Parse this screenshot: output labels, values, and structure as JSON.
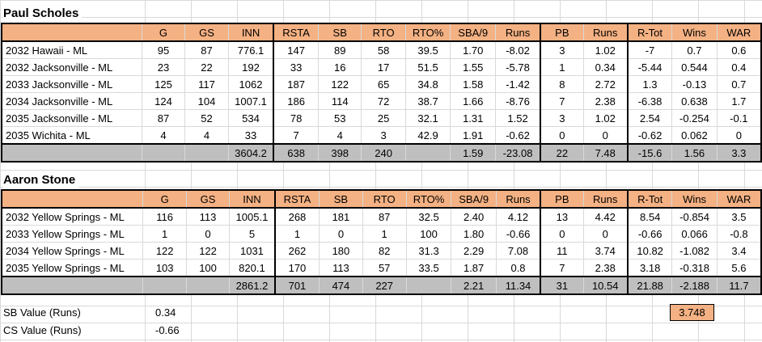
{
  "players": [
    {
      "name": "Paul Scholes",
      "headers": [
        "",
        "G",
        "GS",
        "INN",
        "RSTA",
        "SB",
        "RTO",
        "RTO%",
        "SBA/9",
        "Runs",
        "PB",
        "Runs",
        "R-Tot",
        "Wins",
        "WAR"
      ],
      "rows": [
        [
          "2032 Hawaii - ML",
          "95",
          "87",
          "776.1",
          "147",
          "89",
          "58",
          "39.5",
          "1.70",
          "-8.02",
          "3",
          "1.02",
          "-7",
          "0.7",
          "0.6"
        ],
        [
          "2032 Jacksonville - ML",
          "23",
          "22",
          "192",
          "33",
          "16",
          "17",
          "51.5",
          "1.55",
          "-5.78",
          "1",
          "0.34",
          "-5.44",
          "0.544",
          "0.4"
        ],
        [
          "2033 Jacksonville - ML",
          "125",
          "117",
          "1062",
          "187",
          "122",
          "65",
          "34.8",
          "1.58",
          "-1.42",
          "8",
          "2.72",
          "1.3",
          "-0.13",
          "0.7"
        ],
        [
          "2034 Jacksonville - ML",
          "124",
          "104",
          "1007.1",
          "186",
          "114",
          "72",
          "38.7",
          "1.66",
          "-8.76",
          "7",
          "2.38",
          "-6.38",
          "0.638",
          "1.7"
        ],
        [
          "2035 Jacksonville - ML",
          "87",
          "52",
          "534",
          "78",
          "53",
          "25",
          "32.1",
          "1.31",
          "1.52",
          "3",
          "1.02",
          "2.54",
          "-0.254",
          "-0.1"
        ],
        [
          "2035 Wichita - ML",
          "4",
          "4",
          "33",
          "7",
          "4",
          "3",
          "42.9",
          "1.91",
          "-0.62",
          "0",
          "0",
          "-0.62",
          "0.062",
          "0"
        ]
      ],
      "total": [
        "",
        "",
        "",
        "3604.2",
        "638",
        "398",
        "240",
        "",
        "1.59",
        "-23.08",
        "22",
        "7.48",
        "-15.6",
        "1.56",
        "3.3"
      ]
    },
    {
      "name": "Aaron Stone",
      "headers": [
        "",
        "G",
        "GS",
        "INN",
        "RSTA",
        "SB",
        "RTO",
        "RTO%",
        "SBA/9",
        "Runs",
        "PB",
        "Runs",
        "R-Tot",
        "Wins",
        "WAR"
      ],
      "rows": [
        [
          "2032 Yellow Springs - ML",
          "116",
          "113",
          "1005.1",
          "268",
          "181",
          "87",
          "32.5",
          "2.40",
          "4.12",
          "13",
          "4.42",
          "8.54",
          "-0.854",
          "3.5"
        ],
        [
          "2033 Yellow Springs - ML",
          "1",
          "0",
          "5",
          "1",
          "0",
          "1",
          "100",
          "1.80",
          "-0.66",
          "0",
          "0",
          "-0.66",
          "0.066",
          "-0.8"
        ],
        [
          "2034 Yellow Springs - ML",
          "122",
          "122",
          "1031",
          "262",
          "180",
          "82",
          "31.3",
          "2.29",
          "7.08",
          "11",
          "3.74",
          "10.82",
          "-1.082",
          "3.4"
        ],
        [
          "2035 Yellow Springs - ML",
          "103",
          "100",
          "820.1",
          "170",
          "113",
          "57",
          "33.5",
          "1.87",
          "0.8",
          "7",
          "2.38",
          "3.18",
          "-0.318",
          "5.6"
        ]
      ],
      "total": [
        "",
        "",
        "",
        "2861.2",
        "701",
        "474",
        "227",
        "",
        "2.21",
        "11.34",
        "31",
        "10.54",
        "21.88",
        "-2.188",
        "11.7"
      ]
    }
  ],
  "constants": {
    "sb_value_label": "SB Value (Runs)",
    "sb_value": "0.34",
    "cs_value_label": "CS Value (Runs)",
    "cs_value": "-0.66"
  },
  "highlight_value": "3.748",
  "colors": {
    "header_fill": "#f4b183",
    "total_fill": "#bfbfbf",
    "gridline": "#d9d9d9"
  }
}
